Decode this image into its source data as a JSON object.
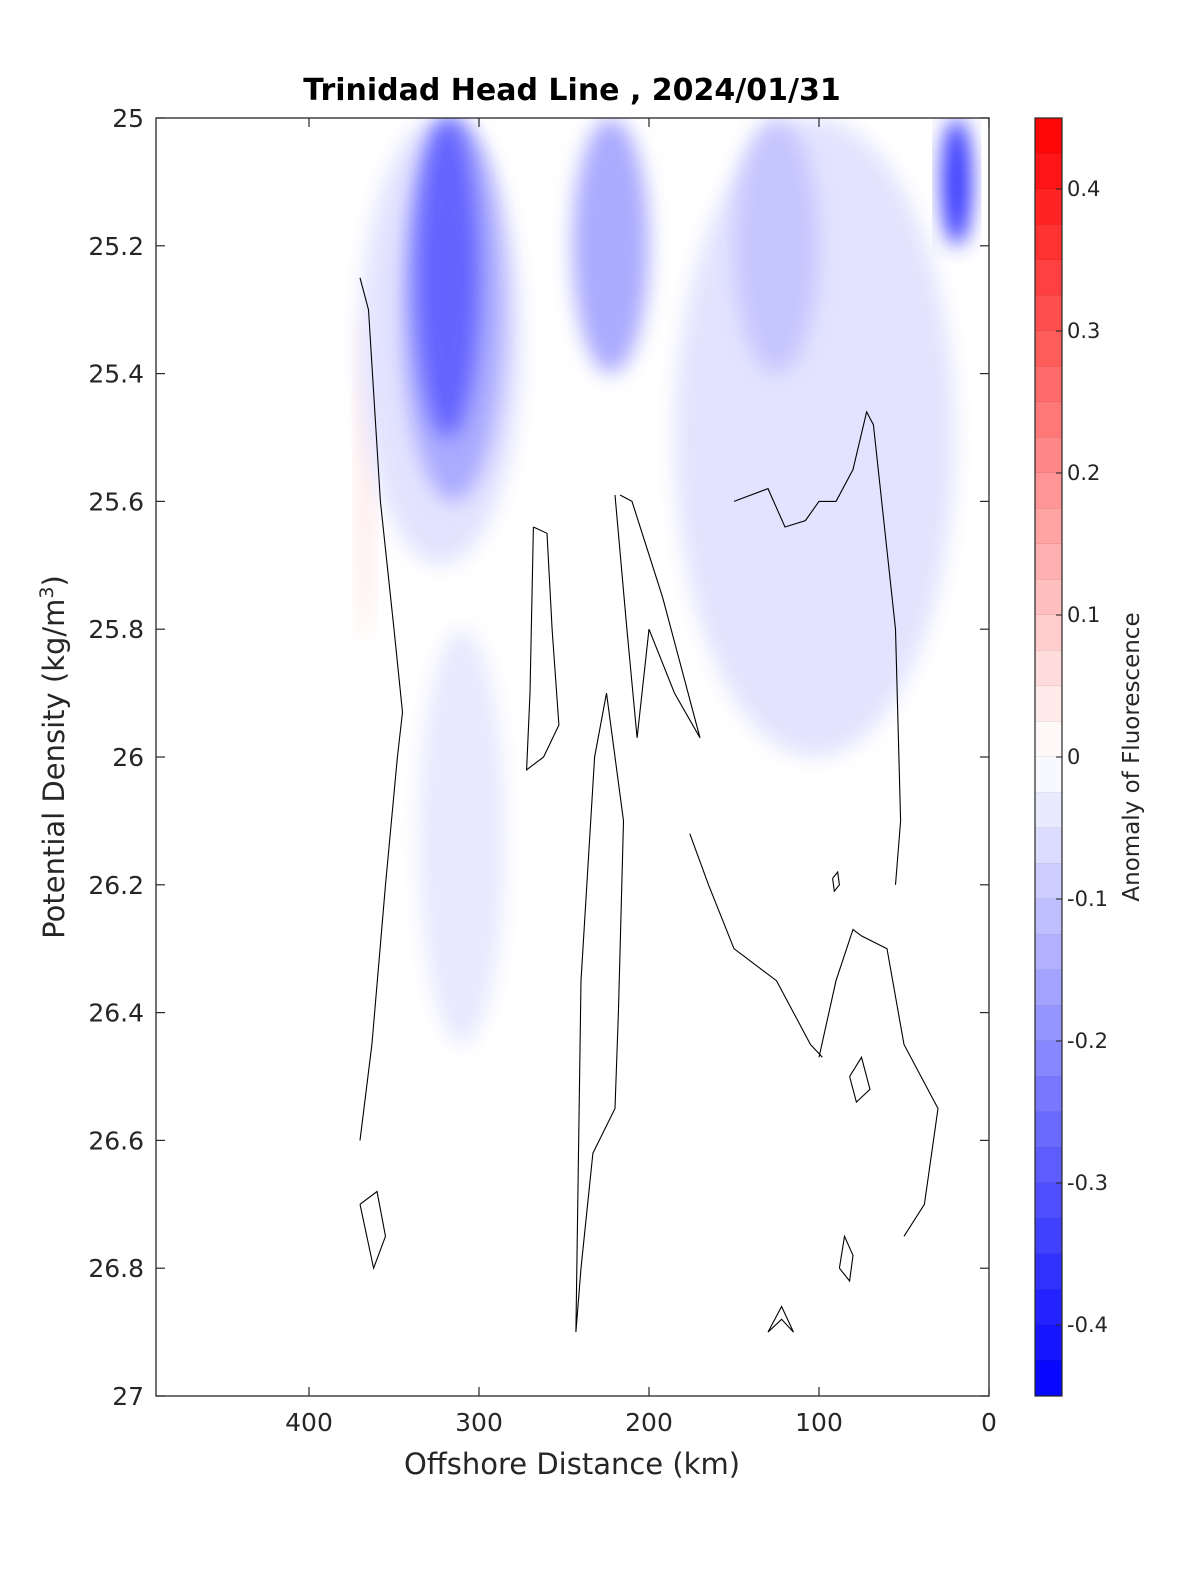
{
  "chart_data": {
    "type": "heatmap",
    "title": "Trinidad Head Line , 2024/01/31",
    "xlabel": "Offshore Distance (km)",
    "ylabel": "Potential Density (kg/m",
    "ylabel_superscript": "3",
    "ylabel_suffix": ")",
    "xlim": [
      490,
      0
    ],
    "ylim": [
      25,
      27
    ],
    "x_reversed": true,
    "y_reversed": true,
    "xticks": [
      400,
      300,
      200,
      100,
      0
    ],
    "yticks": [
      25,
      25.2,
      25.4,
      25.6,
      25.8,
      26,
      26.2,
      26.4,
      26.6,
      26.8,
      27
    ],
    "ytick_labels": [
      "25",
      "25.2",
      "25.4",
      "25.6",
      "25.8",
      "26",
      "26.2",
      "26.4",
      "26.6",
      "26.8",
      "27"
    ],
    "grid": false,
    "colorbar": {
      "label": "Anomaly of Fluorescence",
      "range": [
        -0.45,
        0.45
      ],
      "step": 0.025,
      "ticks": [
        0.4,
        0.3,
        0.2,
        0.1,
        0,
        -0.1,
        -0.2,
        -0.3,
        -0.4
      ],
      "tick_labels": [
        "0.4",
        "0.3",
        "0.2",
        "0.1",
        "0",
        "-0.1",
        "-0.2",
        "-0.3",
        "-0.4"
      ],
      "colormap": "blue-white-red",
      "negative_color": "#0000ff",
      "positive_color": "#ff0000",
      "neutral_color": "#ffffff"
    },
    "anomaly_fields": [
      {
        "sign": "negative",
        "value": -0.275,
        "x": [
          337,
          300
        ],
        "y": [
          25,
          25.5
        ]
      },
      {
        "sign": "negative",
        "value": -0.15,
        "x": [
          345,
          285
        ],
        "y": [
          25,
          25.6
        ]
      },
      {
        "sign": "negative",
        "value": -0.05,
        "x": [
          370,
          275
        ],
        "y": [
          25,
          25.7
        ]
      },
      {
        "sign": "negative",
        "value": -0.04,
        "x": [
          335,
          285
        ],
        "y": [
          25.8,
          26.45
        ]
      },
      {
        "sign": "negative",
        "value": -0.15,
        "x": [
          245,
          200
        ],
        "y": [
          25,
          25.4
        ]
      },
      {
        "sign": "negative",
        "value": -0.1,
        "x": [
          150,
          100
        ],
        "y": [
          25,
          25.4
        ]
      },
      {
        "sign": "negative",
        "value": -0.35,
        "x": [
          28,
          10
        ],
        "y": [
          25,
          25.2
        ]
      },
      {
        "sign": "negative",
        "value": -0.05,
        "x": [
          185,
          20
        ],
        "y": [
          25,
          26.0
        ]
      },
      {
        "sign": "positive",
        "value": 0.04,
        "x": [
          372,
          362
        ],
        "y": [
          25.3,
          25.82
        ]
      }
    ],
    "zero_contours": [
      {
        "x": [
          370,
          365,
          358,
          350,
          345,
          348,
          355,
          363,
          370
        ],
        "y": [
          25.25,
          25.3,
          25.6,
          25.8,
          25.93,
          26.0,
          26.2,
          26.45,
          26.6
        ]
      },
      {
        "x": [
          268,
          260,
          257,
          253,
          262,
          272,
          270,
          268
        ],
        "y": [
          25.64,
          25.65,
          25.8,
          25.95,
          26.0,
          26.02,
          25.9,
          25.64
        ]
      },
      {
        "x": [
          220,
          213,
          207,
          200,
          185,
          170,
          192,
          210,
          217
        ],
        "y": [
          25.59,
          25.8,
          25.97,
          25.8,
          25.9,
          25.97,
          25.75,
          25.6,
          25.59
        ]
      },
      {
        "x": [
          150,
          130,
          120,
          108,
          100,
          90,
          80,
          72,
          68,
          55,
          52,
          55
        ],
        "y": [
          25.6,
          25.58,
          25.64,
          25.63,
          25.6,
          25.6,
          25.55,
          25.46,
          25.48,
          25.8,
          26.1,
          26.2
        ]
      },
      {
        "x": [
          176,
          165,
          150,
          125,
          105,
          98
        ],
        "y": [
          26.12,
          26.2,
          26.3,
          26.35,
          26.45,
          26.47
        ]
      },
      {
        "x": [
          100,
          90,
          80,
          75,
          60,
          50,
          40,
          30,
          38,
          50
        ],
        "y": [
          26.47,
          26.35,
          26.27,
          26.28,
          26.3,
          26.45,
          26.5,
          26.55,
          26.7,
          26.75
        ]
      },
      {
        "x": [
          243,
          240,
          233,
          220,
          218,
          215,
          225,
          232,
          240,
          243
        ],
        "y": [
          26.9,
          26.8,
          26.62,
          26.55,
          26.4,
          26.1,
          25.9,
          26.0,
          26.35,
          26.9
        ]
      },
      {
        "x": [
          370,
          362,
          355,
          360,
          370
        ],
        "y": [
          26.7,
          26.8,
          26.75,
          26.68,
          26.7
        ]
      },
      {
        "x": [
          88,
          85,
          80,
          82,
          88
        ],
        "y": [
          26.8,
          26.75,
          26.78,
          26.82,
          26.8
        ]
      },
      {
        "x": [
          130,
          122,
          115,
          122,
          130
        ],
        "y": [
          26.9,
          26.86,
          26.9,
          26.88,
          26.9
        ]
      },
      {
        "x": [
          82,
          75,
          70,
          78,
          82
        ],
        "y": [
          26.5,
          26.47,
          26.52,
          26.54,
          26.5
        ]
      },
      {
        "x": [
          92,
          89,
          88,
          91,
          92
        ],
        "y": [
          26.19,
          26.18,
          26.2,
          26.21,
          26.19
        ]
      }
    ]
  }
}
